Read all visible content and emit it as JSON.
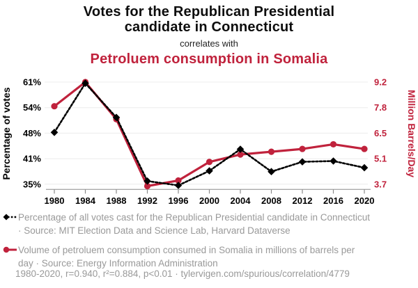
{
  "colors": {
    "accent_red": "#c0223c",
    "muted_text": "#999999",
    "grid": "#ececec",
    "axis_line": "#aaaaaa",
    "black_series": "#000000"
  },
  "header": {
    "title": "Votes for the Republican Presidential candidate in Connecticut",
    "connector": "correlates with",
    "subtitle": "Petroluem consumption in Somalia"
  },
  "chart_data": {
    "type": "line",
    "title": "Votes for the Republican Presidential candidate in Connecticut correlates with Petroluem consumption in Somalia",
    "x": [
      1980,
      1984,
      1988,
      1992,
      1996,
      2000,
      2004,
      2008,
      2012,
      2016,
      2020
    ],
    "x_tick_labels": [
      "1980",
      "1984",
      "1988",
      "1992",
      "1996",
      "2000",
      "2004",
      "2008",
      "2012",
      "2016",
      "2020"
    ],
    "grid": "horizontal",
    "legend_position": "bottom",
    "left_axis": {
      "label": "Percentage of votes",
      "tick_labels": [
        "61%",
        "54%",
        "48%",
        "41%",
        "35%"
      ],
      "range": [
        35,
        61
      ],
      "color": "#000000"
    },
    "right_axis": {
      "label": "Million Barrels/Day",
      "tick_labels": [
        "9.2",
        "7.8",
        "6.5",
        "5.1",
        "3.7"
      ],
      "range": [
        3.7,
        9.2
      ],
      "color": "#c0223c"
    },
    "series": [
      {
        "name": "Percentage of all votes cast for the Republican Presidential candidate in Connecticut",
        "axis": "left",
        "color": "#000000",
        "line_style": "dashed",
        "marker": "diamond",
        "values": [
          48.2,
          60.7,
          52.0,
          35.8,
          34.7,
          38.4,
          43.9,
          38.2,
          40.7,
          40.9,
          39.2
        ]
      },
      {
        "name": "Volume of petroluem consumption consumed in Somalia (million barrels/day)",
        "axis": "right",
        "color": "#c0223c",
        "line_style": "solid",
        "marker": "circle",
        "values": [
          7.9,
          9.2,
          7.2,
          3.6,
          3.9,
          4.9,
          5.3,
          5.45,
          5.6,
          5.85,
          5.6
        ]
      }
    ]
  },
  "legend": {
    "votes_label": "Percentage of all votes cast for the Republican Presidential candidate in Connecticut · Source: MIT Election Data and Science Lab, Harvard Dataverse",
    "petroleum_label": "Volume of petroluem consumption consumed in Somalia in millions of barrels per day · Source: Energy Information Administration"
  },
  "footer": {
    "text": "1980-2020, r=0.940, r²=0.884, p<0.01 · tylervigen.com/spurious/correlation/4779"
  }
}
